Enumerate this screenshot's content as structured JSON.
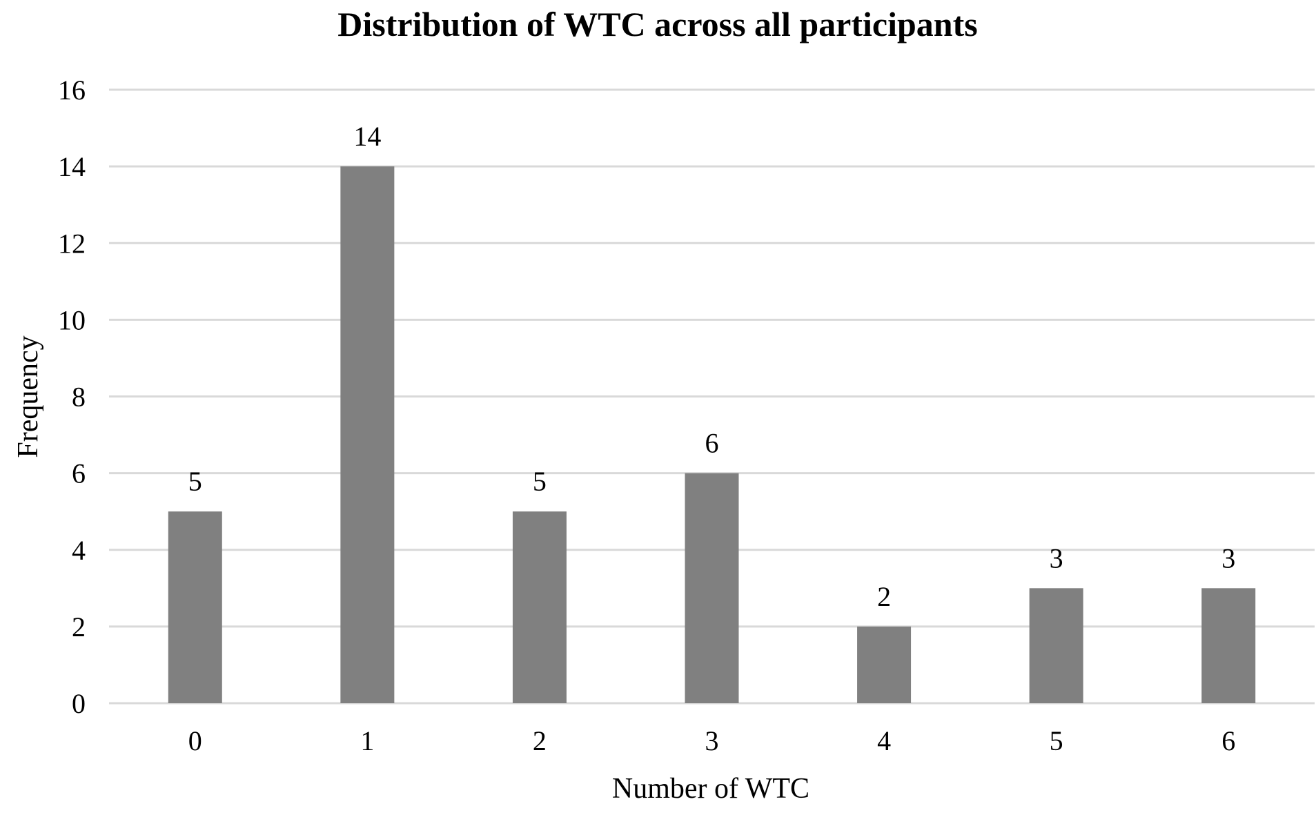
{
  "chart_data": {
    "type": "bar",
    "title": "Distribution of WTC across all participants",
    "xlabel": "Number of WTC",
    "ylabel": "Frequency",
    "categories": [
      "0",
      "1",
      "2",
      "3",
      "4",
      "5",
      "6"
    ],
    "values": [
      5,
      14,
      5,
      6,
      2,
      3,
      3
    ],
    "ylim": [
      0,
      16
    ],
    "yticks": [
      0,
      2,
      4,
      6,
      8,
      10,
      12,
      14,
      16
    ],
    "grid": "horizontal",
    "legend": "none",
    "bar_color": "#808080",
    "grid_color": "#d9d9d9",
    "data_labels": true
  }
}
